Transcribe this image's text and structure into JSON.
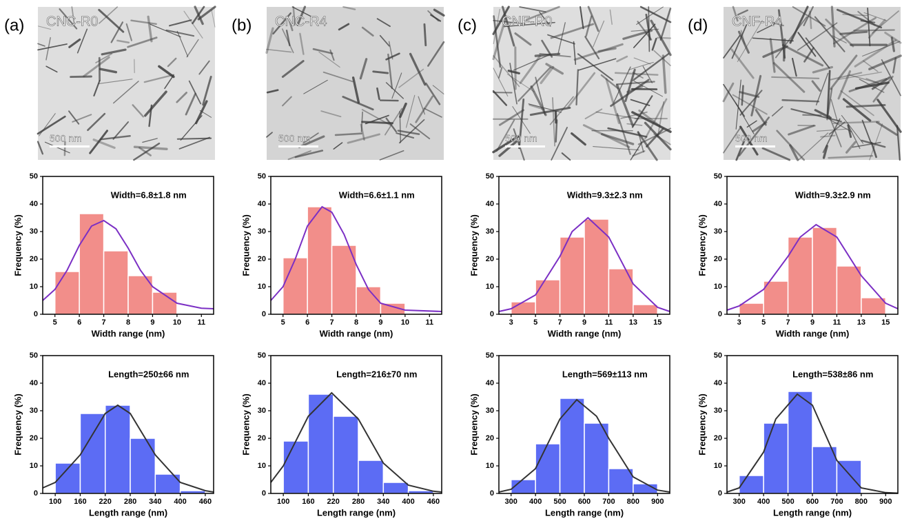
{
  "panels": [
    {
      "label": "(a)",
      "sample": "CNC-R0",
      "scale_bar": "500 nm"
    },
    {
      "label": "(b)",
      "sample": "CNC-R4",
      "scale_bar": "500 nm"
    },
    {
      "label": "(c)",
      "sample": "CNF-R0",
      "scale_bar": "500 nm"
    },
    {
      "label": "(d)",
      "sample": "CNF-R4",
      "scale_bar": "500 nm"
    }
  ],
  "chart_data": [
    {
      "type": "histogram",
      "annotation": "Width=6.8±1.8 nm",
      "xlabel": "Width range (nm)",
      "ylabel": "Frequency (%)",
      "bins": [
        5,
        6,
        7,
        8,
        9,
        10
      ],
      "values": [
        15.5,
        36.5,
        23,
        14,
        8
      ],
      "color": "#f28e8a",
      "fit": {
        "x": [
          4.5,
          5,
          5.5,
          6,
          6.5,
          7,
          7.5,
          8,
          8.5,
          9,
          10,
          11,
          11.5
        ],
        "y": [
          5,
          9,
          16,
          25,
          32,
          34,
          31,
          24,
          16,
          10,
          4,
          2.2,
          2
        ],
        "color": "#7b2fc4"
      },
      "xlim": [
        4.5,
        11.5
      ],
      "xticks": [
        5,
        6,
        7,
        8,
        9,
        10,
        11
      ],
      "ylim": [
        0,
        50
      ],
      "yticks": [
        0,
        10,
        20,
        30,
        40,
        50
      ]
    },
    {
      "type": "histogram",
      "annotation": "Width=6.6±1.1 nm",
      "xlabel": "Width range (nm)",
      "ylabel": "Frequency (%)",
      "bins": [
        5,
        6,
        7,
        8,
        9,
        10
      ],
      "values": [
        20.5,
        39,
        25,
        10,
        4
      ],
      "color": "#f28e8a",
      "fit": {
        "x": [
          4.5,
          5,
          5.5,
          6,
          6.6,
          7,
          7.5,
          8,
          8.5,
          9,
          10,
          11.5
        ],
        "y": [
          5,
          10,
          20,
          32,
          39,
          37,
          29,
          18,
          9,
          4,
          1.5,
          1
        ],
        "color": "#7b2fc4"
      },
      "xlim": [
        4.5,
        11.5
      ],
      "xticks": [
        5,
        6,
        7,
        8,
        9,
        10,
        11
      ],
      "ylim": [
        0,
        50
      ],
      "yticks": [
        0,
        10,
        20,
        30,
        40,
        50
      ]
    },
    {
      "type": "histogram",
      "annotation": "Width=9.3±2.3 nm",
      "xlabel": "Width range (nm)",
      "ylabel": "Frequency (%)",
      "bins": [
        3,
        5,
        7,
        9,
        11,
        13,
        15
      ],
      "values": [
        4.5,
        12.5,
        28,
        34.5,
        16.5,
        3.5
      ],
      "color": "#f28e8a",
      "fit": {
        "x": [
          2,
          3,
          5,
          7,
          8,
          9.3,
          11,
          13,
          15,
          16
        ],
        "y": [
          1,
          2,
          7,
          21,
          30,
          35,
          28,
          11,
          2.5,
          1
        ],
        "color": "#7b2fc4"
      },
      "xlim": [
        2,
        16
      ],
      "xticks": [
        3,
        5,
        7,
        9,
        11,
        13,
        15
      ],
      "ylim": [
        0,
        50
      ],
      "yticks": [
        0,
        10,
        20,
        30,
        40,
        50
      ]
    },
    {
      "type": "histogram",
      "annotation": "Width=9.3±2.9 nm",
      "xlabel": "Width range (nm)",
      "ylabel": "Frequency (%)",
      "bins": [
        3,
        5,
        7,
        9,
        11,
        13,
        15
      ],
      "values": [
        4,
        12,
        28,
        31.5,
        17.5,
        6
      ],
      "color": "#f28e8a",
      "fit": {
        "x": [
          2,
          3,
          5,
          7,
          8,
          9.3,
          11,
          13,
          15,
          16
        ],
        "y": [
          1.5,
          3,
          9,
          21,
          28,
          32.5,
          28,
          14,
          4,
          2
        ],
        "color": "#7b2fc4"
      },
      "xlim": [
        2,
        16
      ],
      "xticks": [
        3,
        5,
        7,
        9,
        11,
        13,
        15
      ],
      "ylim": [
        0,
        50
      ],
      "yticks": [
        0,
        10,
        20,
        30,
        40,
        50
      ]
    },
    {
      "type": "histogram",
      "annotation": "Length=250±66 nm",
      "xlabel": "Length range (nm)",
      "ylabel": "Frequency (%)",
      "bins": [
        100,
        160,
        220,
        280,
        340,
        400,
        460
      ],
      "values": [
        11,
        29,
        32,
        20,
        7,
        1
      ],
      "color": "#5c6cf4",
      "fit": {
        "x": [
          70,
          100,
          160,
          220,
          250,
          280,
          340,
          400,
          460,
          480
        ],
        "y": [
          2,
          4,
          14,
          29,
          32,
          29,
          14,
          4,
          1,
          0.5
        ],
        "color": "#333333"
      },
      "xlim": [
        70,
        480
      ],
      "xticks": [
        100,
        160,
        220,
        280,
        340,
        400,
        460
      ],
      "ylim": [
        0,
        50
      ],
      "yticks": [
        0,
        10,
        20,
        30,
        40,
        50
      ]
    },
    {
      "type": "histogram",
      "annotation": "Length=216±70 nm",
      "xlabel": "Length range (nm)",
      "ylabel": "Frequency (%)",
      "bins": [
        100,
        160,
        220,
        280,
        340,
        400,
        460
      ],
      "values": [
        19,
        36,
        28,
        12,
        4,
        1
      ],
      "color": "#5c6cf4",
      "fit": {
        "x": [
          70,
          100,
          160,
          216,
          280,
          340,
          400,
          460,
          480
        ],
        "y": [
          4,
          10,
          28,
          36.5,
          27,
          11,
          3,
          0.8,
          0.5
        ],
        "color": "#333333"
      },
      "xlim": [
        70,
        480
      ],
      "xticks": [
        100,
        160,
        220,
        280,
        340,
        400,
        460
      ],
      "ylim": [
        0,
        50
      ],
      "yticks": [
        0,
        10,
        20,
        30,
        40,
        50
      ]
    },
    {
      "type": "histogram",
      "annotation": "Length=569±113 nm",
      "xlabel": "Length range (nm)",
      "ylabel": "Frequency (%)",
      "bins": [
        300,
        400,
        500,
        600,
        700,
        800,
        900
      ],
      "values": [
        5,
        18,
        34.5,
        25.5,
        9,
        3.5
      ],
      "color": "#5c6cf4",
      "fit": {
        "x": [
          250,
          300,
          400,
          500,
          569,
          650,
          700,
          800,
          900,
          950
        ],
        "y": [
          0.5,
          1.5,
          9,
          27,
          34,
          28,
          20,
          6,
          1.2,
          0.5
        ],
        "color": "#333333"
      },
      "xlim": [
        250,
        950
      ],
      "xticks": [
        300,
        400,
        500,
        600,
        700,
        800,
        900
      ],
      "ylim": [
        0,
        50
      ],
      "yticks": [
        0,
        10,
        20,
        30,
        40,
        50
      ]
    },
    {
      "type": "histogram",
      "annotation": "Length=538±86 nm",
      "xlabel": "Length range (nm)",
      "ylabel": "Frequency (%)",
      "bins": [
        300,
        400,
        500,
        600,
        700,
        800
      ],
      "values": [
        6.5,
        25.5,
        37,
        17,
        12
      ],
      "color": "#5c6cf4",
      "fit": {
        "x": [
          250,
          300,
          400,
          450,
          538,
          600,
          700,
          800,
          900,
          950
        ],
        "y": [
          0.5,
          2,
          15,
          27,
          36,
          32,
          12,
          2,
          0.3,
          0.1
        ],
        "color": "#333333"
      },
      "xlim": [
        250,
        950
      ],
      "xticks": [
        300,
        400,
        500,
        600,
        700,
        800,
        900
      ],
      "ylim": [
        0,
        50
      ],
      "yticks": [
        0,
        10,
        20,
        30,
        40,
        50
      ]
    }
  ]
}
